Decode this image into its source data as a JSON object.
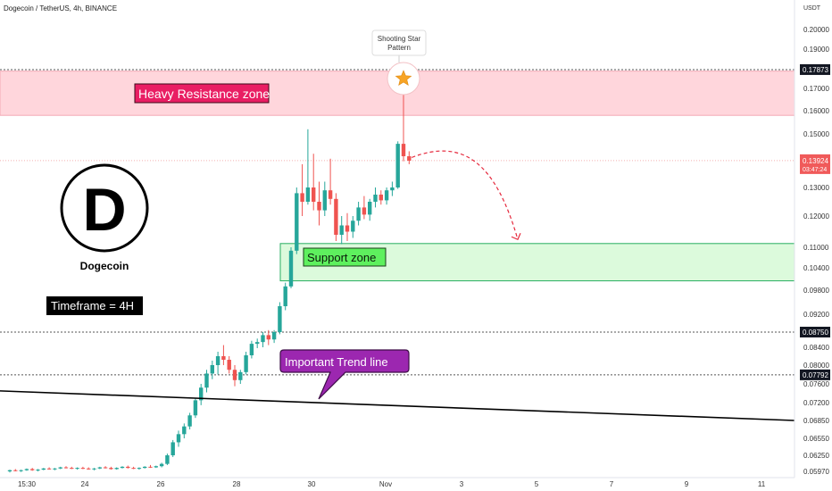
{
  "header": {
    "symbol_label": "Dogecoin / TetherUS, 4h, BINANCE",
    "currency": "USDT"
  },
  "logo": {
    "letter": "D",
    "caption": "Dogecoin"
  },
  "colors": {
    "bull": "#26a69a",
    "bear": "#ef5350",
    "resistance_fill": "#ffd6dc",
    "support_fill": "#dcfadc",
    "support_border": "#27ae60",
    "trend_line": "#000000",
    "annotation_purple": "#7b1fa2",
    "arrow": "#e5283c",
    "price_badge": "#f05a5a"
  },
  "chart_data": {
    "type": "candlestick",
    "timeframe": "4h",
    "y_axis": {
      "ticks": [
        "0.20000",
        "0.19000",
        "0.17000",
        "0.16000",
        "0.15000",
        "0.13000",
        "0.12000",
        "0.11000",
        "0.10400",
        "0.09800",
        "0.09200",
        "0.08400",
        "0.08000",
        "0.07600",
        "0.07200",
        "0.06850",
        "0.06550",
        "0.06250",
        "0.05970"
      ],
      "highlighted_levels": [
        {
          "value": "0.17873",
          "style": "dark"
        },
        {
          "value": "0.08750",
          "style": "dark"
        },
        {
          "value": "0.07792",
          "style": "dark"
        }
      ],
      "current_price": {
        "value": "0.13924",
        "countdown": "03:47:24"
      }
    },
    "x_axis": {
      "ticks": [
        "15:30",
        "24",
        "26",
        "28",
        "30",
        "Nov",
        "3",
        "5",
        "7",
        "9",
        "11"
      ]
    },
    "zones": [
      {
        "name": "resistance",
        "label": "Heavy Resistance zone",
        "from": 0.158,
        "to": 0.178
      },
      {
        "name": "support",
        "label": "Support zone",
        "from": 0.1005,
        "to": 0.1112
      }
    ],
    "annotations": {
      "pattern_label_line1": "Shooting Star",
      "pattern_label_line2": "Pattern",
      "timeframe_label": "Timeframe = 4H",
      "trend_label": "Important Trend line"
    },
    "trend_line": {
      "start": [
        "2024-10-20",
        0.0745
      ],
      "end": [
        "2024-11-12",
        0.0685
      ]
    },
    "projection": {
      "start_value": 0.1405,
      "end_value": 0.1125
    },
    "candles": [
      [
        0.0597,
        0.06,
        0.0595,
        0.0599
      ],
      [
        0.0599,
        0.0601,
        0.0597,
        0.0598
      ],
      [
        0.0598,
        0.06,
        0.0596,
        0.0599
      ],
      [
        0.0599,
        0.0602,
        0.0598,
        0.0601
      ],
      [
        0.0601,
        0.0603,
        0.0598,
        0.0599
      ],
      [
        0.0599,
        0.0601,
        0.0597,
        0.06
      ],
      [
        0.06,
        0.0603,
        0.0599,
        0.0602
      ],
      [
        0.0602,
        0.0604,
        0.06,
        0.0601
      ],
      [
        0.0601,
        0.0603,
        0.0599,
        0.0602
      ],
      [
        0.0602,
        0.0605,
        0.0601,
        0.0604
      ],
      [
        0.0604,
        0.0606,
        0.0602,
        0.0603
      ],
      [
        0.0603,
        0.0605,
        0.0601,
        0.0602
      ],
      [
        0.0602,
        0.0604,
        0.06,
        0.0603
      ],
      [
        0.0603,
        0.0605,
        0.0601,
        0.0602
      ],
      [
        0.0602,
        0.0604,
        0.06,
        0.0601
      ],
      [
        0.0601,
        0.0603,
        0.0599,
        0.0602
      ],
      [
        0.0602,
        0.0605,
        0.0601,
        0.0604
      ],
      [
        0.0604,
        0.0606,
        0.0602,
        0.0603
      ],
      [
        0.0603,
        0.0605,
        0.06,
        0.0601
      ],
      [
        0.0601,
        0.0604,
        0.06,
        0.0603
      ],
      [
        0.0603,
        0.0606,
        0.0602,
        0.0605
      ],
      [
        0.0605,
        0.0607,
        0.0602,
        0.0603
      ],
      [
        0.0603,
        0.0605,
        0.0601,
        0.0602
      ],
      [
        0.0602,
        0.0604,
        0.06,
        0.0603
      ],
      [
        0.0603,
        0.0606,
        0.0602,
        0.0605
      ],
      [
        0.0605,
        0.0608,
        0.0603,
        0.0604
      ],
      [
        0.0604,
        0.0607,
        0.0603,
        0.0606
      ],
      [
        0.0606,
        0.0612,
        0.0604,
        0.061
      ],
      [
        0.061,
        0.0628,
        0.0608,
        0.0625
      ],
      [
        0.0625,
        0.0652,
        0.0622,
        0.0648
      ],
      [
        0.0648,
        0.0668,
        0.064,
        0.0662
      ],
      [
        0.0662,
        0.068,
        0.0655,
        0.0675
      ],
      [
        0.0675,
        0.07,
        0.067,
        0.0695
      ],
      [
        0.0695,
        0.073,
        0.069,
        0.0725
      ],
      [
        0.0725,
        0.076,
        0.0715,
        0.0752
      ],
      [
        0.0752,
        0.079,
        0.0742,
        0.0782
      ],
      [
        0.0782,
        0.081,
        0.077,
        0.08
      ],
      [
        0.08,
        0.083,
        0.078,
        0.082
      ],
      [
        0.082,
        0.0845,
        0.08,
        0.0812
      ],
      [
        0.0812,
        0.082,
        0.0782,
        0.079
      ],
      [
        0.079,
        0.08,
        0.0755,
        0.0768
      ],
      [
        0.0768,
        0.079,
        0.076,
        0.0785
      ],
      [
        0.0785,
        0.083,
        0.078,
        0.0822
      ],
      [
        0.0822,
        0.0855,
        0.0815,
        0.0848
      ],
      [
        0.0848,
        0.086,
        0.0838,
        0.0852
      ],
      [
        0.0852,
        0.0875,
        0.084,
        0.0868
      ],
      [
        0.0868,
        0.088,
        0.0845,
        0.0858
      ],
      [
        0.0858,
        0.088,
        0.085,
        0.0875
      ],
      [
        0.0875,
        0.095,
        0.087,
        0.094
      ],
      [
        0.094,
        0.1,
        0.093,
        0.099
      ],
      [
        0.099,
        0.11,
        0.0985,
        0.109
      ],
      [
        0.109,
        0.13,
        0.108,
        0.128
      ],
      [
        0.128,
        0.138,
        0.12,
        0.125
      ],
      [
        0.125,
        0.152,
        0.124,
        0.13
      ],
      [
        0.13,
        0.142,
        0.122,
        0.125
      ],
      [
        0.125,
        0.132,
        0.117,
        0.122
      ],
      [
        0.122,
        0.132,
        0.12,
        0.129
      ],
      [
        0.129,
        0.14,
        0.124,
        0.126
      ],
      [
        0.126,
        0.128,
        0.112,
        0.114
      ],
      [
        0.114,
        0.12,
        0.111,
        0.117
      ],
      [
        0.117,
        0.121,
        0.112,
        0.115
      ],
      [
        0.115,
        0.12,
        0.113,
        0.1185
      ],
      [
        0.1185,
        0.125,
        0.117,
        0.123
      ],
      [
        0.123,
        0.127,
        0.119,
        0.1205
      ],
      [
        0.1205,
        0.126,
        0.1185,
        0.125
      ],
      [
        0.125,
        0.13,
        0.123,
        0.1275
      ],
      [
        0.1275,
        0.129,
        0.124,
        0.1255
      ],
      [
        0.1255,
        0.13,
        0.124,
        0.129
      ],
      [
        0.129,
        0.132,
        0.127,
        0.13
      ],
      [
        0.13,
        0.147,
        0.1295,
        0.146
      ],
      [
        0.146,
        0.172,
        0.139,
        0.141
      ],
      [
        0.141,
        0.143,
        0.138,
        0.1392
      ]
    ]
  }
}
